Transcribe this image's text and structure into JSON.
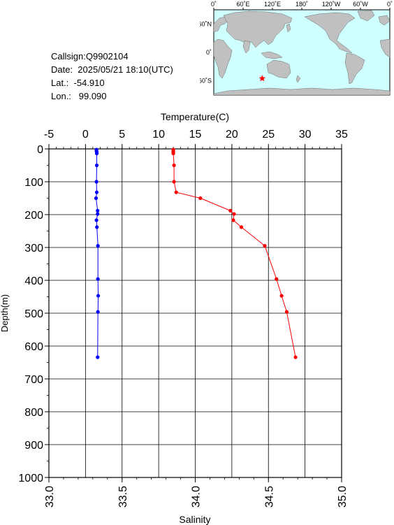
{
  "station": {
    "callsign": "Callsign:Q9902104",
    "date": "Date:  2025/05/21 18:10(UTC)",
    "lat": "Lat.:  -54.910",
    "lon": "Lon.:   99.090"
  },
  "map": {
    "top_labels": [
      "0˚",
      "60˚E",
      "120˚E",
      "180˚",
      "120˚W",
      "60˚W",
      "0˚"
    ],
    "lat_labels": [
      "60˚N",
      "0˚",
      "60˚S"
    ],
    "ocean_color": "#cfffff",
    "land_color": "#c0c0c0",
    "marker_color": "#ff0000",
    "marker_lon": 99.09,
    "marker_lat": -54.91
  },
  "chart_data": {
    "type": "scatter",
    "temperature_axis": {
      "label": "Temperature(C)",
      "range": [
        -5,
        35
      ],
      "ticks": [
        "-5",
        "0",
        "5",
        "10",
        "15",
        "20",
        "25",
        "30",
        "35"
      ]
    },
    "salinity_axis": {
      "label": "Salinity",
      "range": [
        33.0,
        35.0
      ],
      "ticks": [
        "33.0",
        "33.5",
        "34.0",
        "34.5",
        "35.0"
      ]
    },
    "depth_axis": {
      "label": "Depth(m)",
      "range": [
        0,
        1000
      ],
      "ticks": [
        "0",
        "100",
        "200",
        "300",
        "400",
        "500",
        "600",
        "700",
        "800",
        "900",
        "1000"
      ]
    },
    "grid": true,
    "series": [
      {
        "color": "#ff0000",
        "axis": "temperature",
        "depth": [
          2,
          6,
          10,
          14,
          50,
          100,
          132,
          150,
          188,
          198,
          217,
          238,
          295,
          396,
          447,
          496,
          634
        ],
        "values": [
          12.0,
          12.0,
          12.0,
          12.0,
          12.1,
          12.1,
          12.4,
          15.7,
          19.8,
          20.3,
          20.2,
          21.3,
          24.5,
          26.1,
          26.8,
          27.5,
          28.7
        ]
      },
      {
        "color": "#0000ff",
        "axis": "salinity",
        "depth": [
          2,
          6,
          10,
          14,
          50,
          100,
          132,
          150,
          188,
          198,
          217,
          238,
          295,
          396,
          447,
          496,
          634
        ],
        "values": [
          33.325,
          33.325,
          33.327,
          33.327,
          33.327,
          33.325,
          33.327,
          33.322,
          33.333,
          33.333,
          33.325,
          33.328,
          33.335,
          33.335,
          33.337,
          33.335,
          33.333
        ]
      }
    ]
  }
}
